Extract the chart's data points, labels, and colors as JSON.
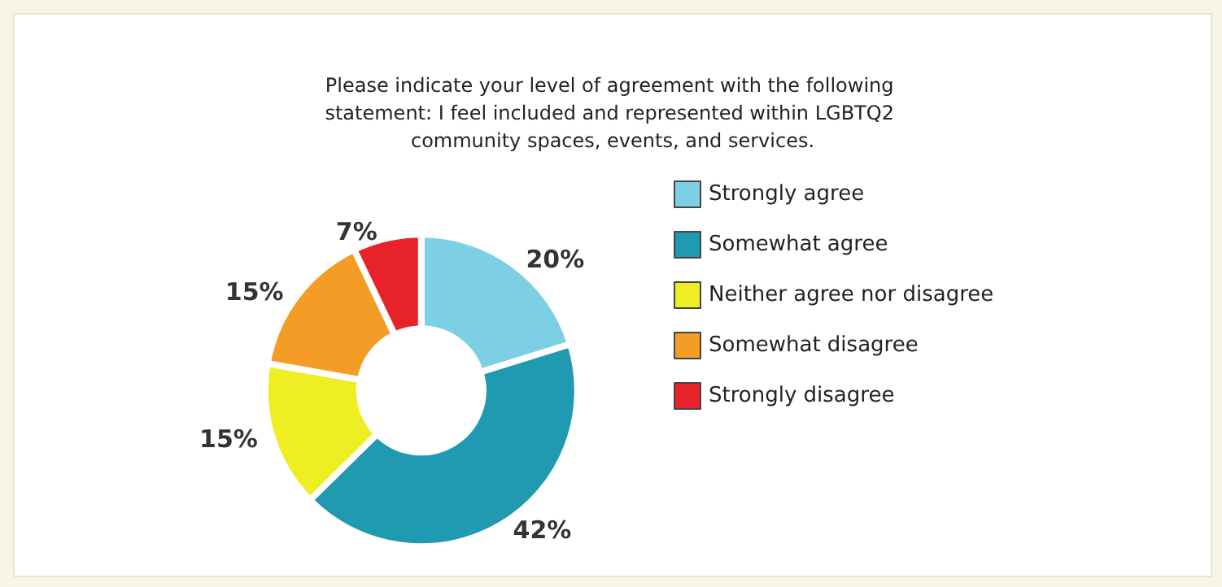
{
  "chart_data": {
    "type": "donut",
    "title": "Please indicate your level of agreement with the following statement: I feel included and represented within LGBTQ2 community spaces, events, and services.",
    "categories": [
      "Strongly agree",
      "Somewhat agree",
      "Neither agree nor disagree",
      "Somewhat disagree",
      "Strongly disagree"
    ],
    "values": [
      20,
      42,
      15,
      15,
      7
    ],
    "value_labels": [
      "20%",
      "42%",
      "15%",
      "15%",
      "7%"
    ],
    "colors": [
      "#7dd0e3",
      "#1f9ab0",
      "#eeee22",
      "#f39c26",
      "#e8222b"
    ],
    "legend": "right"
  }
}
